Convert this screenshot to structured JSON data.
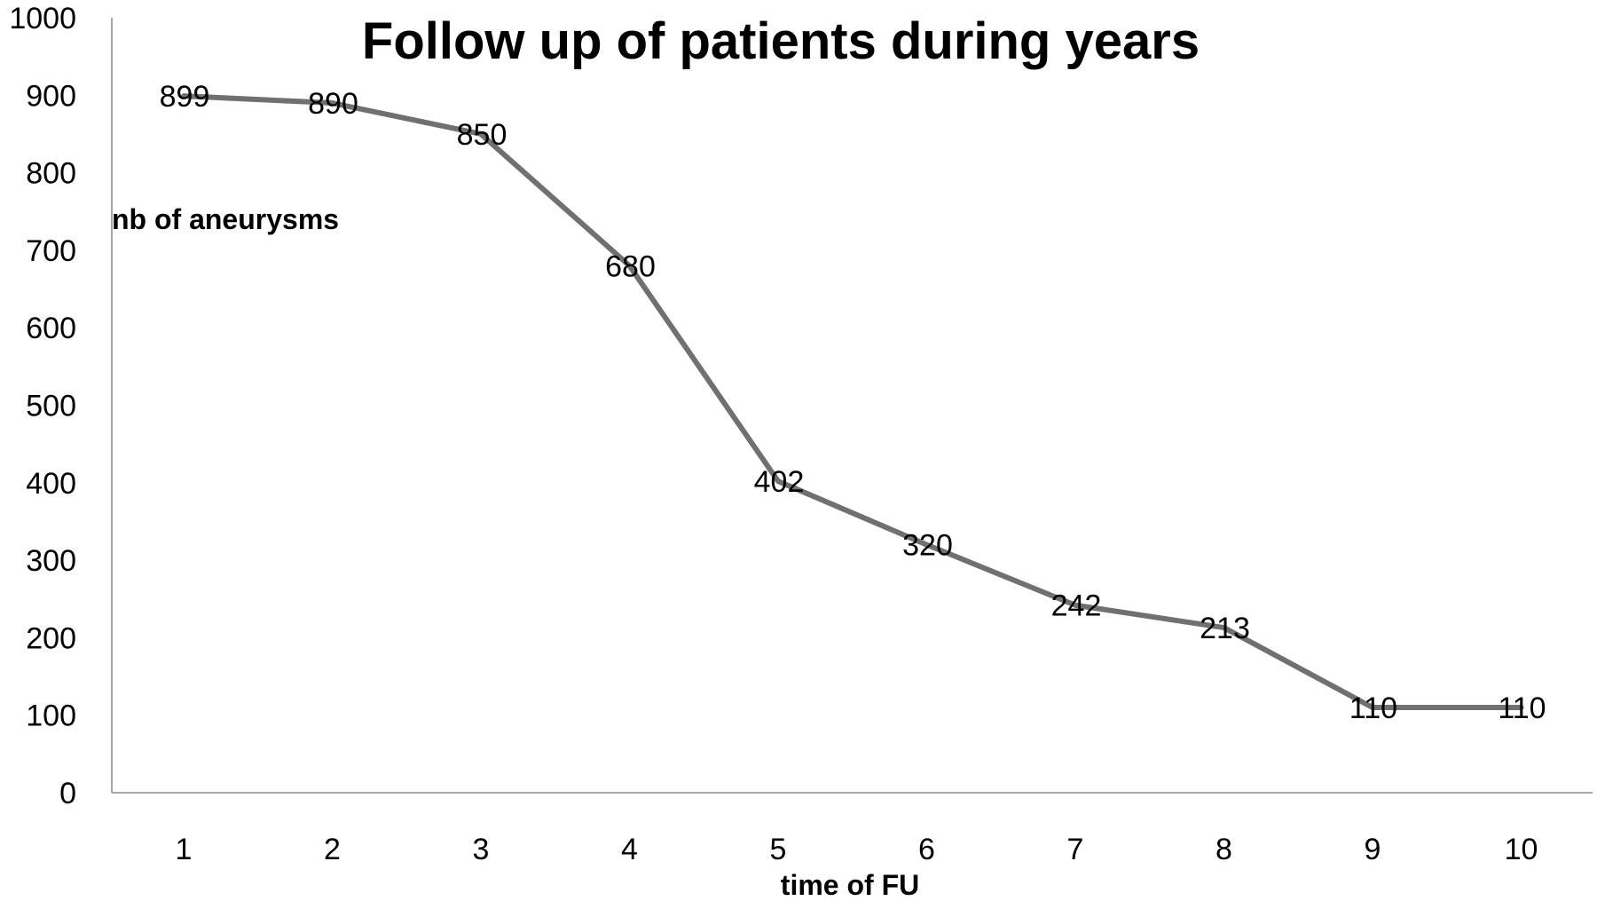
{
  "chart_data": {
    "type": "line",
    "title": "Follow up of patients during years",
    "xlabel": "time of FU",
    "ylabel": "nb of aneurysms",
    "categories": [
      "1",
      "2",
      "3",
      "4",
      "5",
      "6",
      "7",
      "8",
      "9",
      "10"
    ],
    "series": [
      {
        "values": [
          899,
          890,
          850,
          680,
          402,
          320,
          242,
          213,
          110,
          110
        ],
        "color": "#707070",
        "data_labels": true
      }
    ],
    "ylim": [
      0,
      1000
    ],
    "yticks": [
      0,
      100,
      200,
      300,
      400,
      500,
      600,
      700,
      800,
      900,
      1000
    ],
    "grid": false,
    "legend": "none"
  }
}
